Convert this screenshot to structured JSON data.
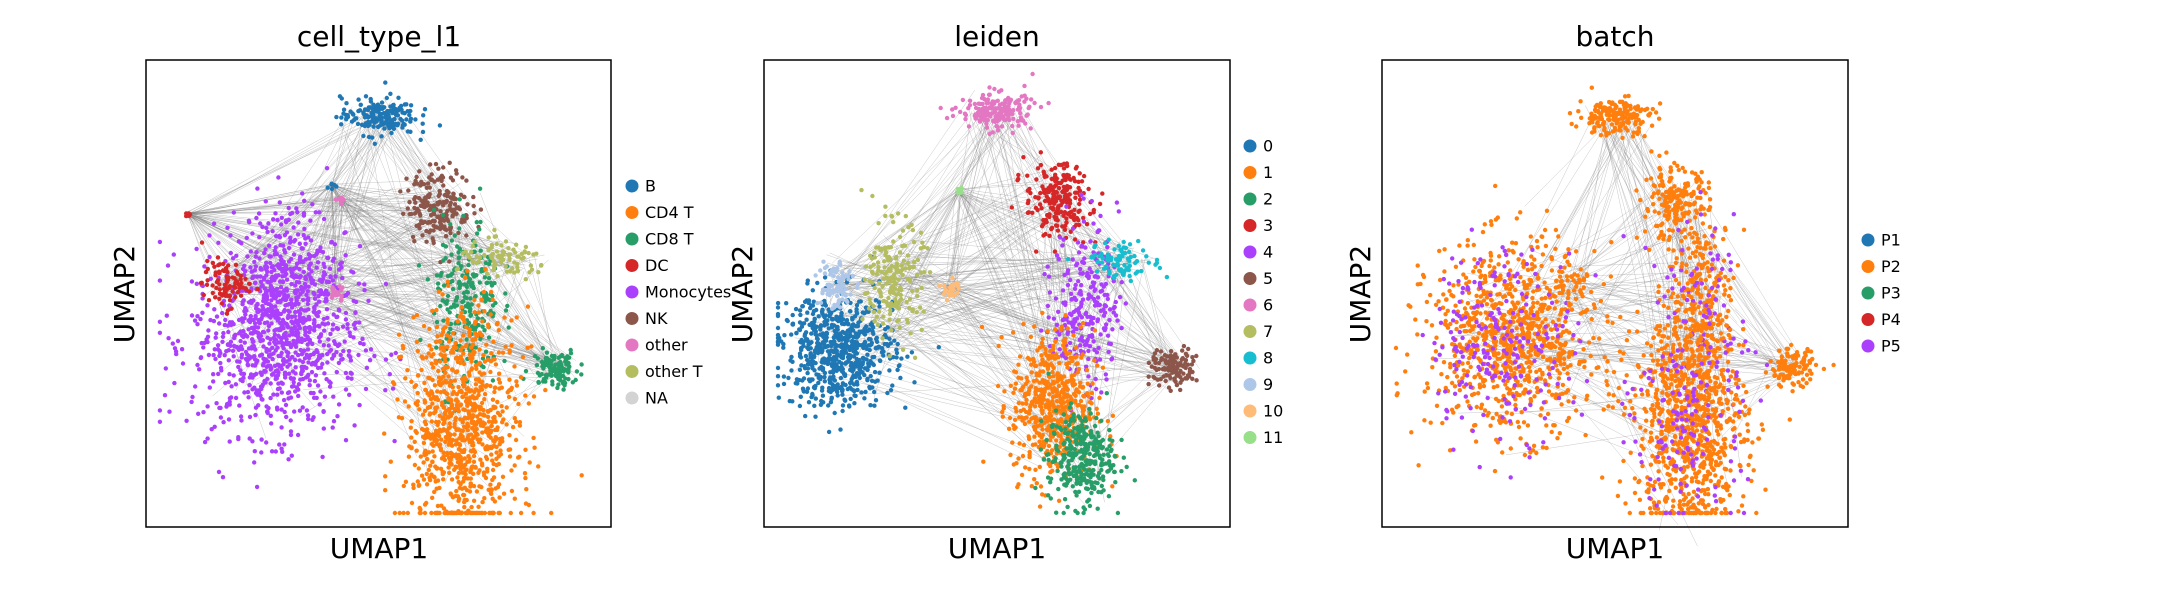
{
  "chart_data": [
    {
      "type": "scatter",
      "title": "cell_type_l1",
      "xlabel": "UMAP1",
      "ylabel": "UMAP2",
      "legend_position": "right",
      "legend": [
        {
          "name": "B",
          "color": "#1f77b4"
        },
        {
          "name": "CD4 T",
          "color": "#ff7f0e"
        },
        {
          "name": "CD8 T",
          "color": "#279e68"
        },
        {
          "name": "DC",
          "color": "#d62728"
        },
        {
          "name": "Monocytes",
          "color": "#aa40fc"
        },
        {
          "name": "NK",
          "color": "#8c564b"
        },
        {
          "name": "other",
          "color": "#e377c2"
        },
        {
          "name": "other T",
          "color": "#b5bd61"
        },
        {
          "name": "NA",
          "color": "#d3d3d3"
        }
      ],
      "clusters": [
        {
          "cat": "Monocytes",
          "x": 0.28,
          "y": 0.4,
          "sx": 0.09,
          "sy": 0.1,
          "n": 900
        },
        {
          "cat": "Monocytes",
          "x": 0.31,
          "y": 0.55,
          "sx": 0.05,
          "sy": 0.08,
          "n": 250
        },
        {
          "cat": "DC",
          "x": 0.17,
          "y": 0.52,
          "sx": 0.025,
          "sy": 0.025,
          "n": 90
        },
        {
          "cat": "B",
          "x": 0.5,
          "y": 0.88,
          "sx": 0.04,
          "sy": 0.02,
          "n": 180
        },
        {
          "cat": "NK",
          "x": 0.63,
          "y": 0.69,
          "sx": 0.035,
          "sy": 0.04,
          "n": 200
        },
        {
          "cat": "CD8 T",
          "x": 0.69,
          "y": 0.48,
          "sx": 0.035,
          "sy": 0.09,
          "n": 250
        },
        {
          "cat": "other T",
          "x": 0.77,
          "y": 0.57,
          "sx": 0.05,
          "sy": 0.02,
          "n": 90
        },
        {
          "cat": "CD8 T",
          "x": 0.88,
          "y": 0.34,
          "sx": 0.025,
          "sy": 0.02,
          "n": 120
        },
        {
          "cat": "CD4 T",
          "x": 0.68,
          "y": 0.22,
          "sx": 0.06,
          "sy": 0.12,
          "n": 900
        },
        {
          "cat": "other",
          "x": 0.41,
          "y": 0.5,
          "sx": 0.008,
          "sy": 0.008,
          "n": 20
        },
        {
          "cat": "other",
          "x": 0.42,
          "y": 0.7,
          "sx": 0.005,
          "sy": 0.005,
          "n": 8
        },
        {
          "cat": "B",
          "x": 0.4,
          "y": 0.73,
          "sx": 0.004,
          "sy": 0.004,
          "n": 6
        },
        {
          "cat": "DC",
          "x": 0.09,
          "y": 0.67,
          "sx": 0.004,
          "sy": 0.004,
          "n": 6
        }
      ]
    },
    {
      "type": "scatter",
      "title": "leiden",
      "xlabel": "UMAP1",
      "ylabel": "UMAP2",
      "legend_position": "right",
      "legend": [
        {
          "name": "0",
          "color": "#1f77b4"
        },
        {
          "name": "1",
          "color": "#ff7f0e"
        },
        {
          "name": "2",
          "color": "#279e68"
        },
        {
          "name": "3",
          "color": "#d62728"
        },
        {
          "name": "4",
          "color": "#aa40fc"
        },
        {
          "name": "5",
          "color": "#8c564b"
        },
        {
          "name": "6",
          "color": "#e377c2"
        },
        {
          "name": "7",
          "color": "#b5bd61"
        },
        {
          "name": "8",
          "color": "#17becf"
        },
        {
          "name": "9",
          "color": "#aec7e8"
        },
        {
          "name": "10",
          "color": "#ffbb78"
        },
        {
          "name": "11",
          "color": "#98df8a"
        }
      ],
      "clusters": [
        {
          "cat": "0",
          "x": 0.16,
          "y": 0.38,
          "sx": 0.06,
          "sy": 0.06,
          "n": 700
        },
        {
          "cat": "9",
          "x": 0.15,
          "y": 0.52,
          "sx": 0.02,
          "sy": 0.03,
          "n": 80
        },
        {
          "cat": "7",
          "x": 0.28,
          "y": 0.53,
          "sx": 0.03,
          "sy": 0.06,
          "n": 200
        },
        {
          "cat": "10",
          "x": 0.4,
          "y": 0.51,
          "sx": 0.01,
          "sy": 0.01,
          "n": 25
        },
        {
          "cat": "6",
          "x": 0.5,
          "y": 0.89,
          "sx": 0.04,
          "sy": 0.02,
          "n": 180
        },
        {
          "cat": "3",
          "x": 0.63,
          "y": 0.7,
          "sx": 0.035,
          "sy": 0.04,
          "n": 220
        },
        {
          "cat": "4",
          "x": 0.69,
          "y": 0.48,
          "sx": 0.035,
          "sy": 0.09,
          "n": 260
        },
        {
          "cat": "8",
          "x": 0.77,
          "y": 0.57,
          "sx": 0.04,
          "sy": 0.02,
          "n": 90
        },
        {
          "cat": "5",
          "x": 0.88,
          "y": 0.34,
          "sx": 0.025,
          "sy": 0.02,
          "n": 120
        },
        {
          "cat": "1",
          "x": 0.62,
          "y": 0.26,
          "sx": 0.045,
          "sy": 0.08,
          "n": 550
        },
        {
          "cat": "2",
          "x": 0.68,
          "y": 0.15,
          "sx": 0.035,
          "sy": 0.05,
          "n": 320
        },
        {
          "cat": "11",
          "x": 0.42,
          "y": 0.72,
          "sx": 0.005,
          "sy": 0.005,
          "n": 8
        }
      ]
    },
    {
      "type": "scatter",
      "title": "batch",
      "xlabel": "UMAP1",
      "ylabel": "UMAP2",
      "legend_position": "right",
      "legend": [
        {
          "name": "P1",
          "color": "#1f77b4"
        },
        {
          "name": "P2",
          "color": "#ff7f0e"
        },
        {
          "name": "P3",
          "color": "#279e68"
        },
        {
          "name": "P4",
          "color": "#d62728"
        },
        {
          "name": "P5",
          "color": "#aa40fc"
        }
      ],
      "clusters": [
        {
          "cat": "P2",
          "x": 0.28,
          "y": 0.4,
          "sx": 0.09,
          "sy": 0.1,
          "n": 900
        },
        {
          "cat": "P5",
          "x": 0.26,
          "y": 0.4,
          "sx": 0.08,
          "sy": 0.1,
          "n": 220
        },
        {
          "cat": "P2",
          "x": 0.5,
          "y": 0.88,
          "sx": 0.04,
          "sy": 0.02,
          "n": 180
        },
        {
          "cat": "P2",
          "x": 0.63,
          "y": 0.69,
          "sx": 0.035,
          "sy": 0.04,
          "n": 200
        },
        {
          "cat": "P2",
          "x": 0.69,
          "y": 0.48,
          "sx": 0.035,
          "sy": 0.09,
          "n": 250
        },
        {
          "cat": "P5",
          "x": 0.69,
          "y": 0.48,
          "sx": 0.035,
          "sy": 0.09,
          "n": 60
        },
        {
          "cat": "P2",
          "x": 0.88,
          "y": 0.34,
          "sx": 0.025,
          "sy": 0.02,
          "n": 120
        },
        {
          "cat": "P2",
          "x": 0.66,
          "y": 0.22,
          "sx": 0.06,
          "sy": 0.12,
          "n": 900
        },
        {
          "cat": "P5",
          "x": 0.66,
          "y": 0.24,
          "sx": 0.06,
          "sy": 0.12,
          "n": 160
        },
        {
          "cat": "P2",
          "x": 0.4,
          "y": 0.52,
          "sx": 0.02,
          "sy": 0.02,
          "n": 30
        }
      ]
    }
  ]
}
